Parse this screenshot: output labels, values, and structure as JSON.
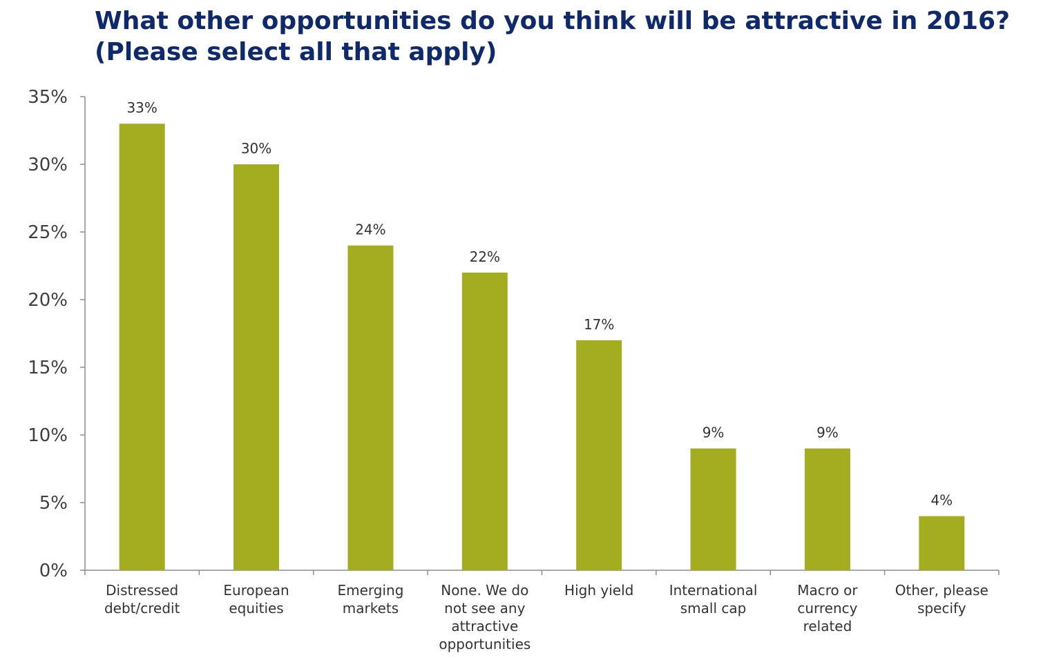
{
  "chart_data": {
    "type": "bar",
    "title_lines": [
      "What other opportunities do you think will be attractive in 2016?",
      "(Please select all that apply)"
    ],
    "categories": [
      [
        "Distressed",
        "debt/credit"
      ],
      [
        "European",
        "equities"
      ],
      [
        "Emerging",
        "markets"
      ],
      [
        "None. We do",
        "not see any",
        "attractive",
        "opportunities"
      ],
      [
        "High yield"
      ],
      [
        "International",
        "small cap"
      ],
      [
        "Macro or",
        "currency",
        "related"
      ],
      [
        "Other, please",
        "specify"
      ]
    ],
    "values": [
      33,
      30,
      24,
      22,
      17,
      9,
      9,
      4
    ],
    "value_labels": [
      "33%",
      "30%",
      "24%",
      "22%",
      "17%",
      "9%",
      "9%",
      "4%"
    ],
    "ylim": [
      0,
      35
    ],
    "y_ticks": [
      0,
      5,
      10,
      15,
      20,
      25,
      30,
      35
    ],
    "y_tick_labels": [
      "0%",
      "5%",
      "10%",
      "15%",
      "20%",
      "25%",
      "30%",
      "35%"
    ],
    "xlabel": "",
    "ylabel": "",
    "grid": false,
    "legend": "none",
    "bar_color": "#a3ad1f",
    "title_color": "#0f2a6b"
  }
}
